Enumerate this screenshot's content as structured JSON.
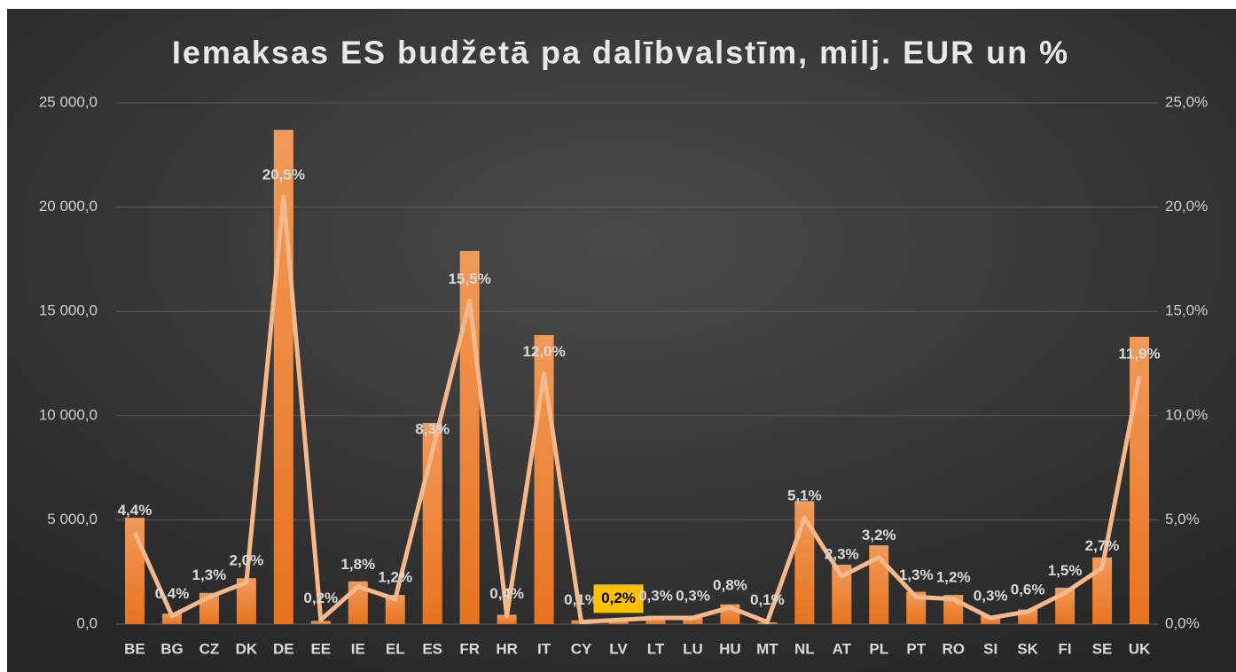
{
  "chart_data": {
    "type": "bar_line",
    "title": "Iemaksas ES budžetā pa dalībvalstīm, milj. EUR un %",
    "categories": [
      "BE",
      "BG",
      "CZ",
      "DK",
      "DE",
      "EE",
      "IE",
      "EL",
      "ES",
      "FR",
      "HR",
      "IT",
      "CY",
      "LV",
      "LT",
      "LU",
      "HU",
      "MT",
      "NL",
      "AT",
      "PL",
      "PT",
      "RO",
      "SI",
      "SK",
      "FI",
      "SE",
      "UK"
    ],
    "series": [
      {
        "name": "milj. EUR",
        "color": "#ee8436",
        "axis": "y",
        "values": [
          5100,
          500,
          1500,
          2200,
          23700,
          150,
          2050,
          1400,
          9650,
          17900,
          450,
          13860,
          180,
          250,
          400,
          300,
          950,
          80,
          5900,
          2850,
          3780,
          1550,
          1400,
          400,
          700,
          1750,
          3200,
          13780
        ]
      },
      {
        "name": "%",
        "color": "#f5b88a",
        "axis": "y2",
        "values": [
          4.4,
          0.4,
          1.3,
          2.0,
          20.5,
          0.2,
          1.8,
          1.2,
          8.3,
          15.5,
          0.4,
          12.0,
          0.1,
          0.2,
          0.3,
          0.3,
          0.8,
          0.1,
          5.1,
          2.3,
          3.2,
          1.3,
          1.2,
          0.3,
          0.6,
          1.5,
          2.7,
          11.9
        ],
        "value_labels": [
          "4,4%",
          "0,4%",
          "1,3%",
          "2,0%",
          "20,5%",
          "0,2%",
          "1,8%",
          "1,2%",
          "8,3%",
          "15,5%",
          "0,4%",
          "12,0%",
          "0,1%",
          "0,2%",
          "0,3%",
          "0,3%",
          "0,8%",
          "0,1%",
          "5,1%",
          "2,3%",
          "3,2%",
          "1,3%",
          "1,2%",
          "0,3%",
          "0,6%",
          "1,5%",
          "2,7%",
          "11,9%"
        ]
      }
    ],
    "highlight": "LV",
    "ylim": [
      0,
      25000
    ],
    "yticks": [
      {
        "value": 0,
        "label": "0,0"
      },
      {
        "value": 5000,
        "label": "5 000,0"
      },
      {
        "value": 10000,
        "label": "10 000,0"
      },
      {
        "value": 15000,
        "label": "15 000,0"
      },
      {
        "value": 20000,
        "label": "20 000,0"
      },
      {
        "value": 25000,
        "label": "25 000,0"
      }
    ],
    "y2lim": [
      0,
      25
    ],
    "y2ticks": [
      {
        "value": 0,
        "label": "0,0%"
      },
      {
        "value": 5,
        "label": "5,0%"
      },
      {
        "value": 10,
        "label": "10,0%"
      },
      {
        "value": 15,
        "label": "15,0%"
      },
      {
        "value": 20,
        "label": "20,0%"
      },
      {
        "value": 25,
        "label": "25,0%"
      }
    ],
    "grid": true
  }
}
